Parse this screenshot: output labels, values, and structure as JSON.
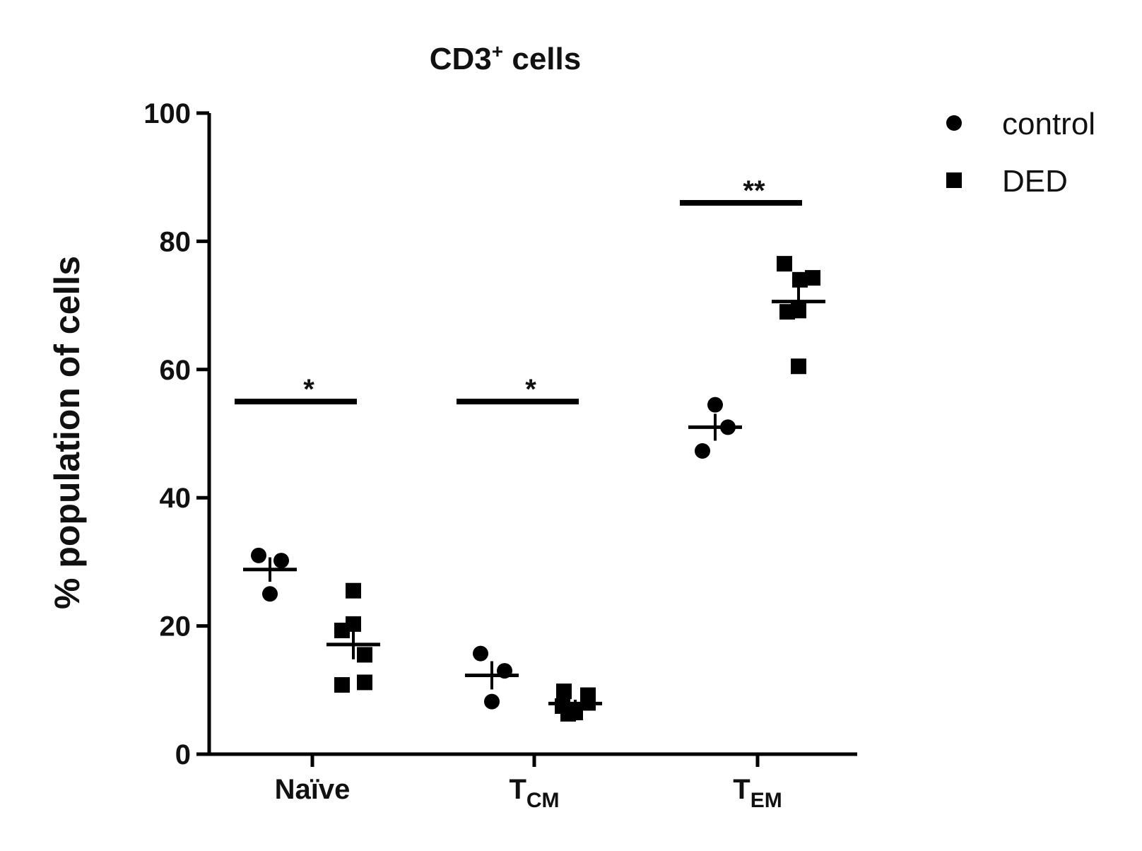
{
  "chart_data": {
    "type": "scatter",
    "title_main": "CD3",
    "title_sup": "+",
    "title_rest": " cells",
    "ylabel": "% population of cells",
    "ylim": [
      0,
      100
    ],
    "yticks": [
      0,
      20,
      40,
      60,
      80,
      100
    ],
    "categories": [
      {
        "main": "Naïve",
        "sub": ""
      },
      {
        "main": "T",
        "sub": "CM"
      },
      {
        "main": "T",
        "sub": "EM"
      }
    ],
    "series": [
      {
        "name": "control",
        "marker": "circle",
        "groups": [
          {
            "values": [
              31,
              30.2,
              25
            ],
            "mean": 28.8,
            "sem": 1.9
          },
          {
            "values": [
              15.7,
              13,
              8.2
            ],
            "mean": 12.3,
            "sem": 2.2
          },
          {
            "values": [
              54.5,
              51,
              47.3
            ],
            "mean": 51,
            "sem": 2.1
          }
        ]
      },
      {
        "name": "DED",
        "marker": "square",
        "groups": [
          {
            "values": [
              25.5,
              20.3,
              19.3,
              15.5,
              11.2,
              10.8
            ],
            "mean": 17.1,
            "sem": 2.3
          },
          {
            "values": [
              9.8,
              9.2,
              8.0,
              7.5,
              6.5,
              6.3
            ],
            "mean": 7.9,
            "sem": 0.6
          },
          {
            "values": [
              76.5,
              74.3,
              74,
              69.2,
              69,
              60.5
            ],
            "mean": 70.6,
            "sem": 2.4
          }
        ]
      }
    ],
    "significance": [
      {
        "label": "*",
        "y": 55,
        "from_group": 0
      },
      {
        "label": "*",
        "y": 55,
        "from_group": 1
      },
      {
        "label": "**",
        "y": 86,
        "from_group": 2
      }
    ],
    "legend": [
      "control",
      "DED"
    ],
    "legend_position": "top-right",
    "colors": {
      "marks": "#000000"
    }
  }
}
